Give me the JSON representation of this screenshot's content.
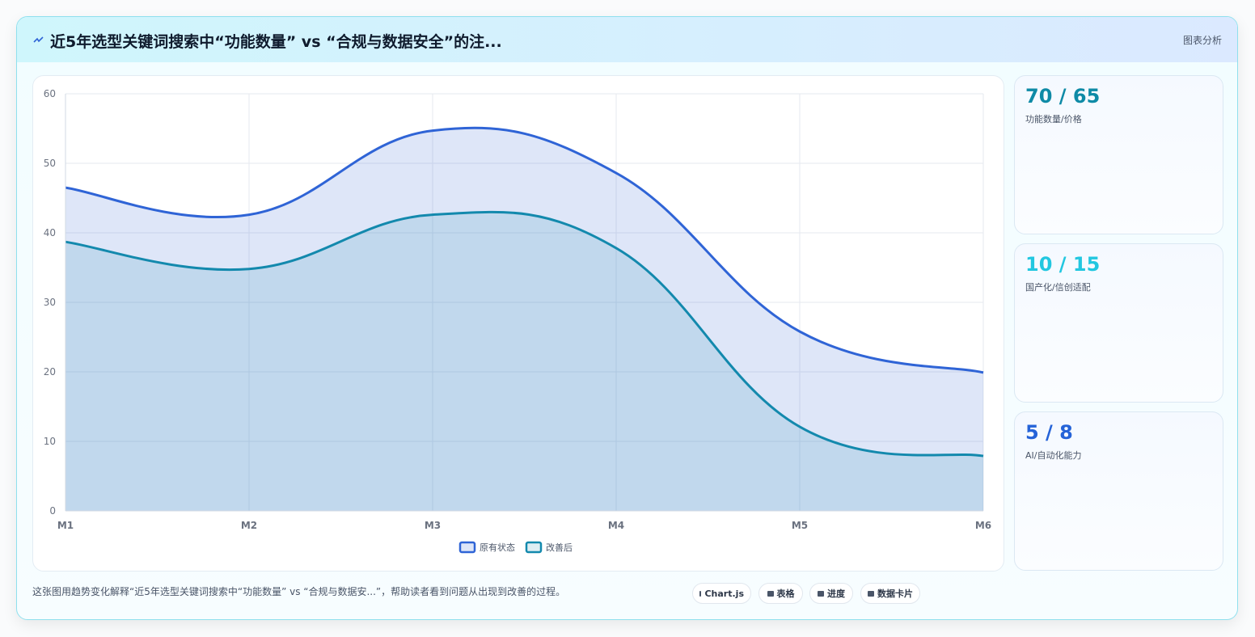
{
  "header": {
    "title": "近5年选型关键词搜索中“功能数量” vs “合规与数据安全”的注...",
    "tag": "图表分析"
  },
  "chart_data": {
    "type": "area",
    "categories": [
      "M1",
      "M2",
      "M3",
      "M4",
      "M5",
      "M6"
    ],
    "series": [
      {
        "name": "原有状态",
        "color": "#2f64d6",
        "values": [
          46.5,
          42.6,
          54.7,
          48.6,
          25.8,
          19.9
        ]
      },
      {
        "name": "改善后",
        "color": "#1389ad",
        "values": [
          38.7,
          34.8,
          42.6,
          37.8,
          12.1,
          7.9
        ]
      }
    ],
    "ylim": [
      0,
      60
    ],
    "yticks": [
      0,
      10,
      20,
      30,
      40,
      50,
      60
    ],
    "grid": true
  },
  "stats": [
    {
      "value": "70 / 65",
      "label": "功能数量/价格",
      "color": "#0e8aa6"
    },
    {
      "value": "10 / 15",
      "label": "国产化/信创适配",
      "color": "#22c7e0"
    },
    {
      "value": "5 / 8",
      "label": "AI/自动化能力",
      "color": "#2563d8"
    }
  ],
  "footer": {
    "text": "这张图用趋势变化解释“近5年选型关键词搜索中“功能数量” vs “合规与数据安...”，帮助读者看到问题从出现到改善的过程。",
    "pills": [
      "Chart.js",
      "表格",
      "进度",
      "数据卡片"
    ]
  }
}
